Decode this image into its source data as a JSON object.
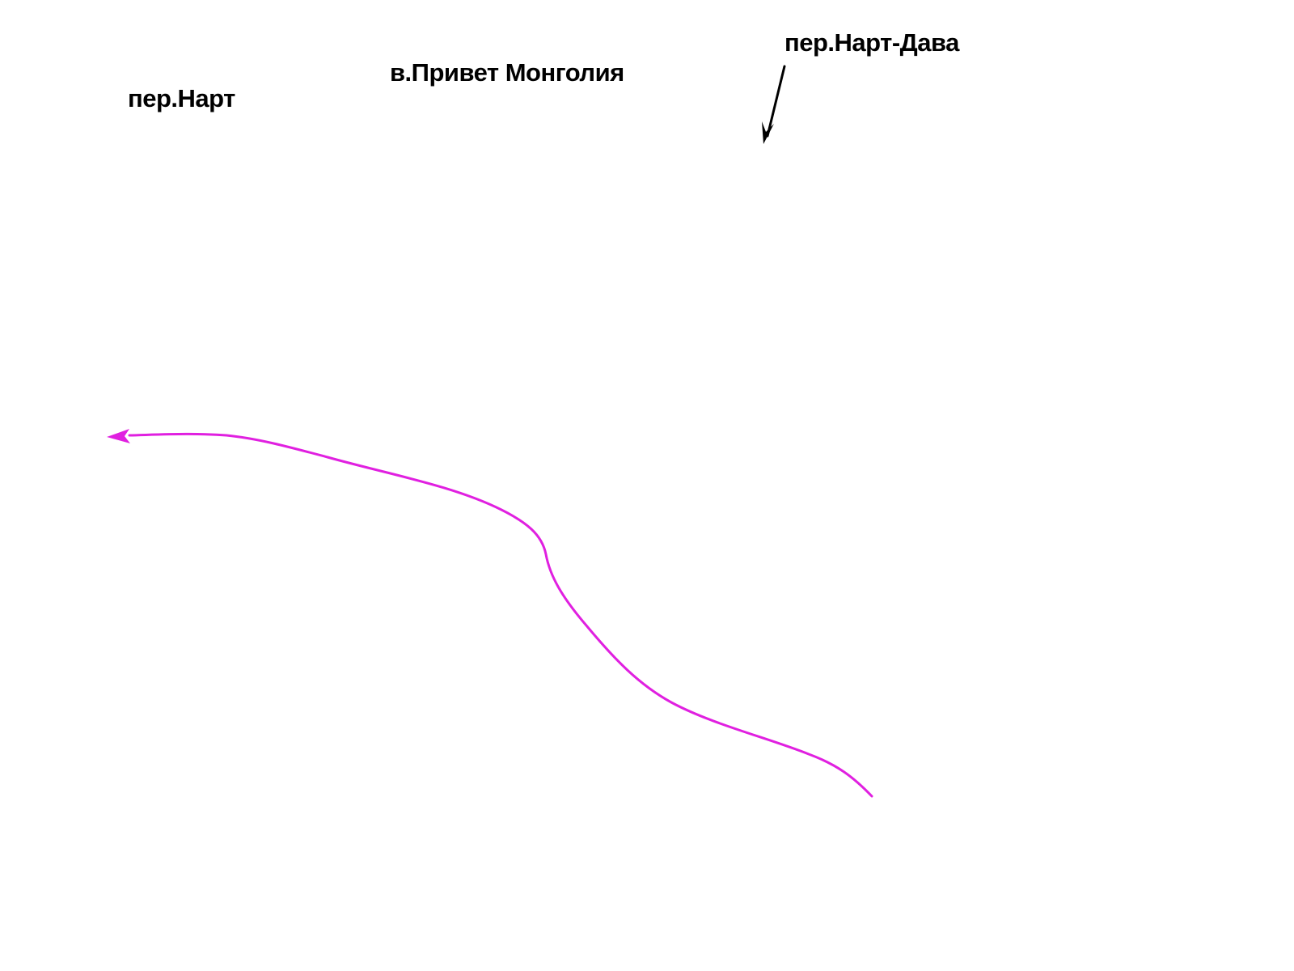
{
  "labels": {
    "pass_nart": "пер.Нарт",
    "peak_privet_mongolia": "в.Привет Монголия",
    "pass_nart_dava": "пер.Нарт-Дава"
  },
  "colors": {
    "text": "#000000",
    "pointer_arrow": "#000000",
    "route": "#e020e0",
    "background": "#ffffff"
  },
  "icons": {
    "pointer": "arrow-down-icon",
    "route_head": "arrowhead-left-icon"
  }
}
